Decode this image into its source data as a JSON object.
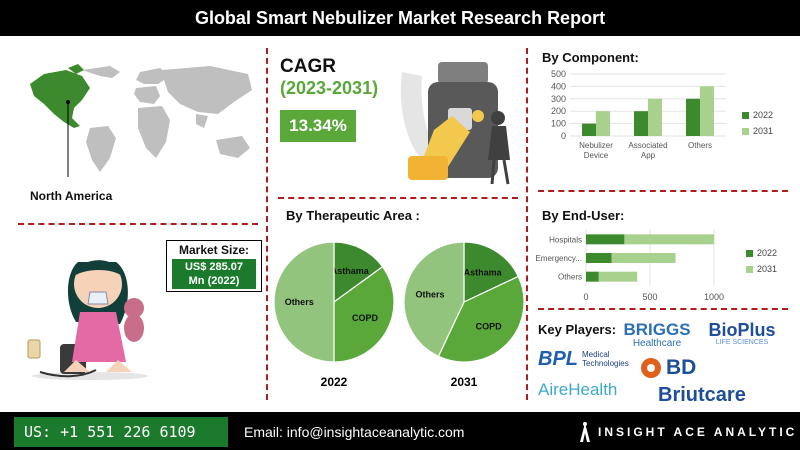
{
  "title": "Global Smart Nebulizer Market Research Report",
  "region": {
    "label": "North America"
  },
  "cagr": {
    "label": "CAGR",
    "period": "(2023-2031)",
    "value": "13.34%"
  },
  "market_size": {
    "label": "Market Size:",
    "value_line1": "US$ 285.07",
    "value_line2": "Mn (2022)"
  },
  "colors": {
    "dark_green": "#3d8a2e",
    "mid_green": "#5aa73a",
    "light_green": "#93c47d",
    "pale_green": "#a9d18e",
    "accent_red": "#b01c1c"
  },
  "footer": {
    "phone": "US: +1 551 226 6109",
    "email": "Email: info@insightaceanalytic.com",
    "brand": "INSIGHT ACE ANALYTIC"
  },
  "key_players": {
    "label": "Key Players:",
    "logos": [
      {
        "name": "BRIGGS",
        "sub": "Healthcare"
      },
      {
        "name": "BioPlus",
        "sub": "LIFE SCIENCES"
      },
      {
        "name": "BPL",
        "sub": "Medical Technologies"
      },
      {
        "name": "BD"
      },
      {
        "name": "AireHealth"
      },
      {
        "name": "Briutcare"
      }
    ]
  },
  "chart_data": [
    {
      "type": "bar",
      "title": "By Component:",
      "categories": [
        "Nebulizer Device",
        "Associated App",
        "Others"
      ],
      "series": [
        {
          "name": "2022",
          "values": [
            100,
            200,
            300
          ],
          "color": "#3d8a2e"
        },
        {
          "name": "2031",
          "values": [
            200,
            300,
            400
          ],
          "color": "#a9d18e"
        }
      ],
      "ylim": [
        0,
        500
      ],
      "yticks": [
        0,
        100,
        200,
        300,
        400,
        500
      ],
      "legend": "right"
    },
    {
      "type": "bar",
      "orientation": "horizontal",
      "title": "By End-User:",
      "categories": [
        "Hospitals",
        "Emergency...",
        "Others"
      ],
      "series": [
        {
          "name": "2022",
          "values": [
            300,
            200,
            100
          ],
          "color": "#3d8a2e"
        },
        {
          "name": "2031",
          "values": [
            700,
            500,
            300
          ],
          "color": "#a9d18e"
        }
      ],
      "xlim": [
        0,
        1000
      ],
      "xticks": [
        0,
        500,
        1000
      ],
      "stacked": true,
      "legend": "right"
    },
    {
      "type": "pie",
      "title": "By Therapeutic Area :",
      "charts": [
        {
          "label": "2022",
          "slices": [
            {
              "name": "Asthama",
              "value": 15,
              "color": "#3d8a2e"
            },
            {
              "name": "COPD",
              "value": 35,
              "color": "#5aa73a"
            },
            {
              "name": "Others",
              "value": 50,
              "color": "#93c47d"
            }
          ]
        },
        {
          "label": "2031",
          "slices": [
            {
              "name": "Asthama",
              "value": 18,
              "color": "#3d8a2e"
            },
            {
              "name": "COPD",
              "value": 39,
              "color": "#5aa73a"
            },
            {
              "name": "Others",
              "value": 43,
              "color": "#93c47d"
            }
          ]
        }
      ]
    }
  ]
}
